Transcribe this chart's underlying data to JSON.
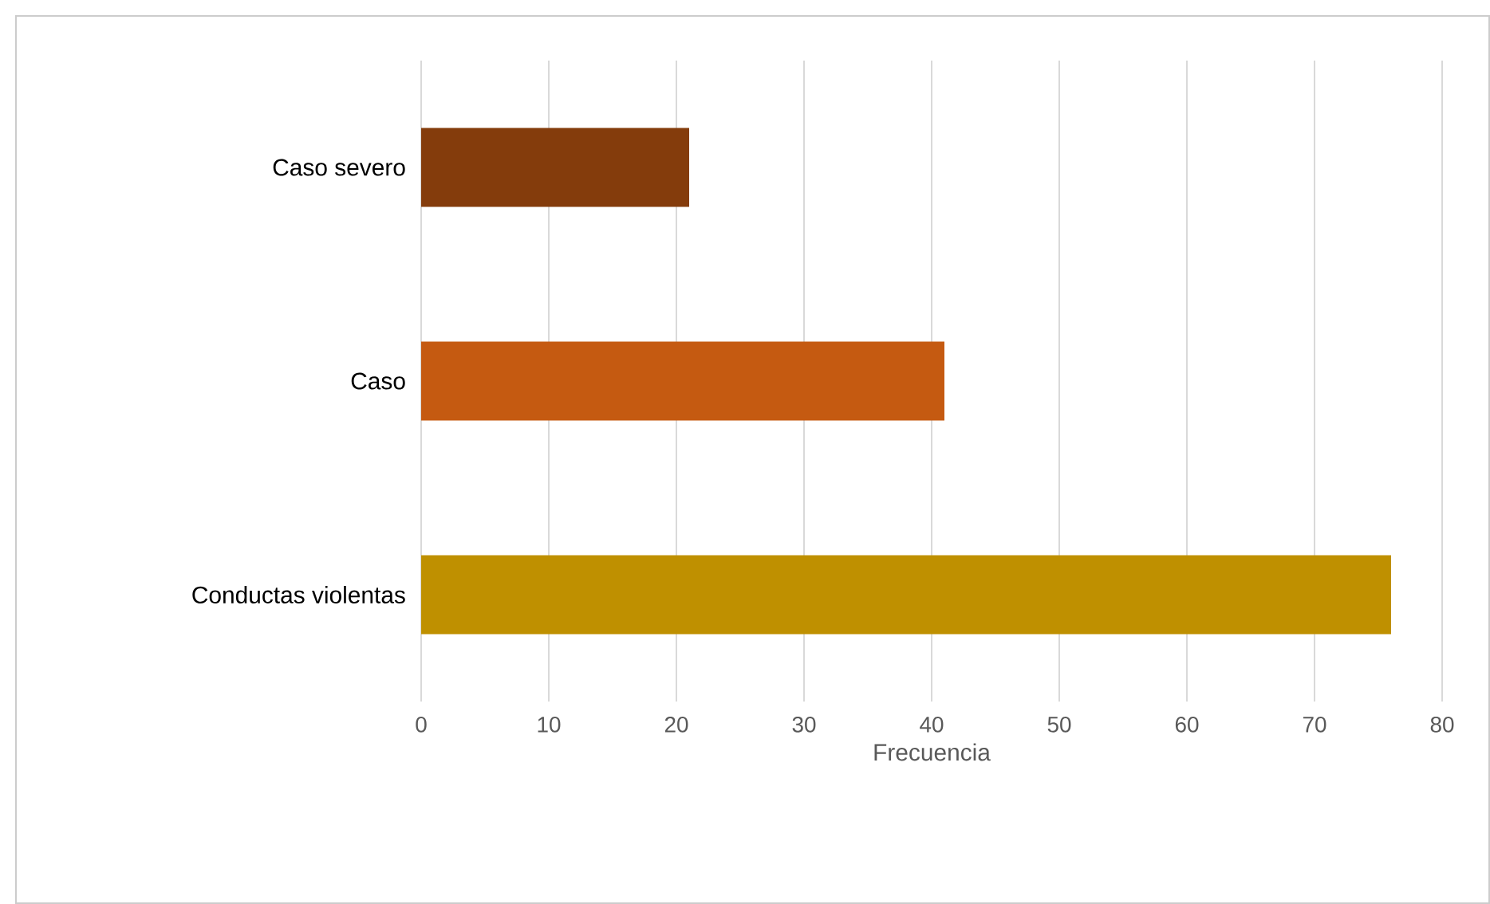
{
  "chart_data": {
    "type": "bar",
    "orientation": "horizontal",
    "categories": [
      "Caso severo",
      "Caso",
      "Conductas violentas"
    ],
    "values": [
      21,
      41,
      76
    ],
    "colors": [
      "#843c0c",
      "#c55a11",
      "#bf9000"
    ],
    "xlim": [
      0,
      80
    ],
    "xticks": [
      0,
      10,
      20,
      30,
      40,
      50,
      60,
      70,
      80
    ],
    "xlabel": "Frecuencia",
    "grid": "x"
  }
}
